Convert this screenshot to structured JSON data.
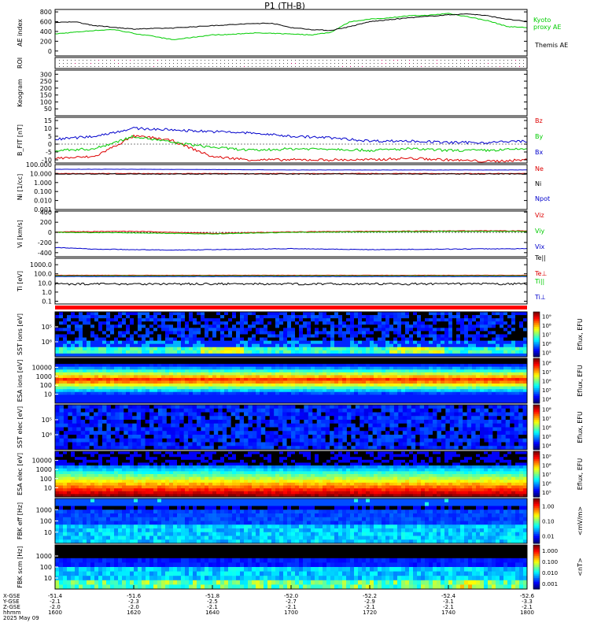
{
  "title": "P1 (TH-B)",
  "colors": {
    "red": "#dd0000",
    "green": "#00cc00",
    "blue": "#0000cc",
    "black": "#000000"
  },
  "chart_data": [
    {
      "type": "line",
      "name": "ae",
      "ylabel": "AE index",
      "yticks": [
        0,
        200,
        400,
        600,
        800
      ],
      "ylim": [
        -100,
        850
      ],
      "series": [
        {
          "name": "Kyoto",
          "sub": "proxy AE",
          "color": "green",
          "x": [
            1600,
            1610,
            1615,
            1620,
            1625,
            1630,
            1640,
            1645,
            1650,
            1700,
            1705,
            1710,
            1715,
            1720,
            1725,
            1730,
            1735,
            1740,
            1745,
            1750,
            1755,
            1800
          ],
          "y": [
            350,
            420,
            440,
            360,
            300,
            230,
            330,
            340,
            370,
            350,
            330,
            380,
            600,
            650,
            680,
            720,
            730,
            770,
            700,
            620,
            500,
            480
          ]
        },
        {
          "name": "Themis AE",
          "color": "black",
          "x": [
            1600,
            1605,
            1610,
            1620,
            1630,
            1640,
            1650,
            1655,
            1700,
            1705,
            1710,
            1715,
            1720,
            1730,
            1740,
            1745,
            1750,
            1755,
            1800
          ],
          "y": [
            580,
            600,
            520,
            450,
            470,
            520,
            560,
            570,
            480,
            440,
            420,
            500,
            600,
            680,
            740,
            760,
            720,
            650,
            600
          ]
        }
      ]
    },
    {
      "type": "scatter",
      "name": "roi",
      "ylabel": "ROI"
    },
    {
      "type": "heatmap",
      "name": "keogram",
      "ylabel": "Keogram",
      "yticks": [
        50,
        100,
        150,
        200,
        250,
        300
      ],
      "ylim": [
        0,
        330
      ]
    },
    {
      "type": "line",
      "name": "bfield",
      "ylabel": "B_FIT [nT]",
      "yticks": [
        -10,
        -5,
        0,
        5,
        10,
        15
      ],
      "ylim": [
        -12,
        17
      ],
      "series": [
        {
          "name": "Bz",
          "color": "red",
          "x": [
            1600,
            1610,
            1620,
            1625,
            1630,
            1635,
            1640,
            1645,
            1650,
            1700,
            1710,
            1720,
            1730,
            1740,
            1750,
            1800
          ],
          "y": [
            -9,
            -8,
            5,
            4,
            2,
            -3,
            -8,
            -9,
            -10,
            -10,
            -10,
            -10,
            -9,
            -10,
            -11,
            -10
          ]
        },
        {
          "name": "By",
          "color": "green",
          "x": [
            1600,
            1610,
            1620,
            1625,
            1630,
            1640,
            1650,
            1700,
            1710,
            1720,
            1730,
            1740,
            1750,
            1800
          ],
          "y": [
            -4,
            -3,
            5,
            3,
            1,
            -2,
            -4,
            -3,
            -3,
            -4,
            -3,
            -4,
            -4,
            -3
          ]
        },
        {
          "name": "Bx",
          "color": "blue",
          "x": [
            1600,
            1610,
            1620,
            1630,
            1640,
            1650,
            1700,
            1710,
            1720,
            1730,
            1740,
            1750,
            1800
          ],
          "y": [
            3,
            5,
            10,
            9,
            8,
            7,
            5,
            4,
            2,
            2,
            1,
            1,
            2
          ]
        }
      ]
    },
    {
      "type": "line",
      "name": "density",
      "ylabel": "Ni [1/cc]",
      "yticks_text": [
        "0.001",
        "0.010",
        "0.100",
        "1.000",
        "10.000",
        "100.000"
      ],
      "ylog": [
        0.001,
        100
      ],
      "series": [
        {
          "name": "Ne",
          "color": "red",
          "x": [
            1600,
            1800
          ],
          "y": [
            10,
            10
          ]
        },
        {
          "name": "Ni",
          "color": "black",
          "x": [
            1600,
            1800
          ],
          "y": [
            9,
            9
          ]
        },
        {
          "name": "Npot",
          "color": "blue",
          "x": [
            1600,
            1620,
            1640,
            1700,
            1720,
            1800
          ],
          "y": [
            30,
            30,
            28,
            25,
            25,
            25
          ]
        }
      ]
    },
    {
      "type": "line",
      "name": "velocity",
      "ylabel": "Vi [km/s]",
      "yticks": [
        -400,
        -200,
        0,
        200,
        400
      ],
      "ylim": [
        -480,
        420
      ],
      "series": [
        {
          "name": "Viz",
          "color": "red",
          "x": [
            1600,
            1620,
            1640,
            1700,
            1720,
            1740,
            1800
          ],
          "y": [
            10,
            20,
            -20,
            10,
            20,
            30,
            30
          ]
        },
        {
          "name": "Viy",
          "color": "green",
          "x": [
            1600,
            1620,
            1640,
            1700,
            1720,
            1740,
            1800
          ],
          "y": [
            0,
            -10,
            -30,
            0,
            10,
            20,
            20
          ]
        },
        {
          "name": "Vix",
          "color": "blue",
          "x": [
            1600,
            1610,
            1620,
            1630,
            1640,
            1700,
            1720,
            1740,
            1800
          ],
          "y": [
            -300,
            -330,
            -340,
            -350,
            -340,
            -320,
            -340,
            -330,
            -320
          ]
        }
      ]
    },
    {
      "type": "line",
      "name": "temperature",
      "ylabel": "Ti [eV]",
      "yticks_text": [
        "0.1",
        "1.0",
        "10.0",
        "100.0",
        "1000.0"
      ],
      "ylog": [
        0.05,
        5000
      ],
      "series": [
        {
          "name": "Te||",
          "color": "black",
          "x": [
            1600,
            1800
          ],
          "y": [
            8,
            8
          ]
        },
        {
          "name": "Te⊥",
          "color": "red",
          "x": [
            1600,
            1800
          ],
          "y": [
            70,
            70
          ]
        },
        {
          "name": "Ti||",
          "color": "green",
          "x": [
            1600,
            1800
          ],
          "y": [
            60,
            60
          ]
        },
        {
          "name": "Ti⊥",
          "color": "blue",
          "x": [
            1600,
            1800
          ],
          "y": [
            50,
            50
          ]
        }
      ]
    },
    {
      "type": "heatmap",
      "name": "sst_ion",
      "ylabel": "SST ions [eV]",
      "yticks_text": [
        "10⁶",
        "10⁵"
      ],
      "colorbar": {
        "label": "Eflux, EFU",
        "ticks": [
          "10⁵",
          "10⁶",
          "10⁷",
          "10⁸",
          "10⁹"
        ]
      }
    },
    {
      "type": "heatmap",
      "name": "esa_ion",
      "ylabel": "ESA ions [eV]",
      "yticks_text": [
        "10",
        "100",
        "1000",
        "10000"
      ],
      "colorbar": {
        "label": "Eflux, EFU",
        "ticks": [
          "10⁴",
          "10⁵",
          "10⁶",
          "10⁷",
          "10⁸"
        ]
      }
    },
    {
      "type": "heatmap",
      "name": "sst_elec",
      "ylabel": "SST elec [eV]",
      "yticks_text": [
        "10⁶",
        "10⁵"
      ],
      "colorbar": {
        "label": "Eflux, EFU",
        "ticks": [
          "10⁴",
          "10⁵",
          "10⁶",
          "10⁷",
          "10⁸"
        ]
      }
    },
    {
      "type": "heatmap",
      "name": "esa_elec",
      "ylabel": "ESA elec [eV]",
      "yticks_text": [
        "10",
        "100",
        "1000",
        "10000"
      ],
      "colorbar": {
        "label": "Eflux, EFU",
        "ticks": [
          "10⁵",
          "10⁶",
          "10⁷",
          "10⁸",
          "10⁹"
        ]
      }
    },
    {
      "type": "heatmap",
      "name": "fbk_e",
      "ylabel": "FBK eff [Hz]",
      "yticks_text": [
        "10",
        "100",
        "1000"
      ],
      "colorbar": {
        "label": "<mV/m>",
        "ticks": [
          "0.01",
          "0.10",
          "1.00"
        ]
      }
    },
    {
      "type": "heatmap",
      "name": "fbk_b",
      "ylabel": "FBK scm [Hz]",
      "yticks_text": [
        "10",
        "100",
        "1000"
      ],
      "colorbar": {
        "label": "<nT>",
        "ticks": [
          "0.001",
          "0.010",
          "0.100",
          "1.000"
        ]
      }
    }
  ],
  "xaxis": {
    "row_labels": [
      "X-GSE",
      "Y-GSE",
      "Z-GSE",
      "hhmm",
      "2025 May 09"
    ],
    "ticks": [
      {
        "t": 1600,
        "vals": [
          "-51.4",
          "-2.1",
          "-2.0",
          "1600"
        ]
      },
      {
        "t": 1620,
        "vals": [
          "-51.6",
          "-2.3",
          "-2.0",
          "1620"
        ]
      },
      {
        "t": 1640,
        "vals": [
          "-51.8",
          "-2.5",
          "-2.1",
          "1640"
        ]
      },
      {
        "t": 1700,
        "vals": [
          "-52.0",
          "-2.7",
          "-2.1",
          "1700"
        ]
      },
      {
        "t": 1720,
        "vals": [
          "-52.2",
          "-2.9",
          "-2.1",
          "1720"
        ]
      },
      {
        "t": 1740,
        "vals": [
          "-52.4",
          "-3.1",
          "-2.1",
          "1740"
        ]
      },
      {
        "t": 1800,
        "vals": [
          "-52.6",
          "-3.3",
          "-2.1",
          "1800"
        ]
      }
    ]
  }
}
